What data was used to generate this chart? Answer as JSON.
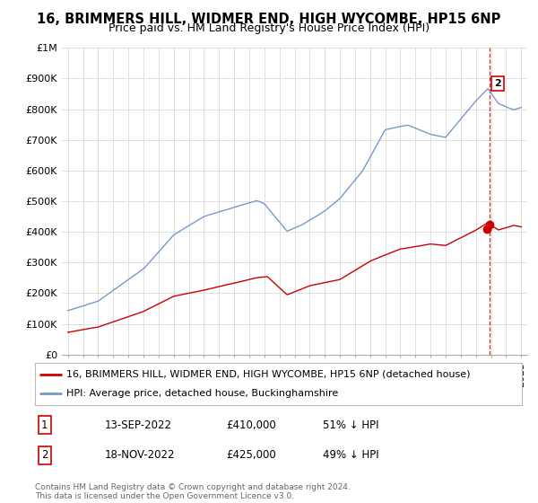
{
  "title": "16, BRIMMERS HILL, WIDMER END, HIGH WYCOMBE, HP15 6NP",
  "subtitle": "Price paid vs. HM Land Registry's House Price Index (HPI)",
  "ylim": [
    0,
    1000000
  ],
  "yticks": [
    0,
    100000,
    200000,
    300000,
    400000,
    500000,
    600000,
    700000,
    800000,
    900000,
    1000000
  ],
  "ytick_labels": [
    "£0",
    "£100K",
    "£200K",
    "£300K",
    "£400K",
    "£500K",
    "£600K",
    "£700K",
    "£800K",
    "£900K",
    "£1M"
  ],
  "hpi_color": "#7799cc",
  "price_color": "#cc0000",
  "dashed_color": "#cc0000",
  "legend_label_red": "16, BRIMMERS HILL, WIDMER END, HIGH WYCOMBE, HP15 6NP (detached house)",
  "legend_label_blue": "HPI: Average price, detached house, Buckinghamshire",
  "transaction1_label": "1",
  "transaction1_date": "13-SEP-2022",
  "transaction1_price": "£410,000",
  "transaction1_hpi": "51% ↓ HPI",
  "transaction2_label": "2",
  "transaction2_date": "18-NOV-2022",
  "transaction2_price": "£425,000",
  "transaction2_hpi": "49% ↓ HPI",
  "footer": "Contains HM Land Registry data © Crown copyright and database right 2024.\nThis data is licensed under the Open Government Licence v3.0.",
  "background_color": "#ffffff",
  "grid_color": "#e0e0e0",
  "title_fontsize": 10.5,
  "subtitle_fontsize": 9,
  "tick_fontsize": 8,
  "legend_fontsize": 8,
  "table_fontsize": 8.5,
  "footer_fontsize": 6.5,
  "xlim_left": 1994.6,
  "xlim_right": 2025.4,
  "dashed_x": 2022.9
}
